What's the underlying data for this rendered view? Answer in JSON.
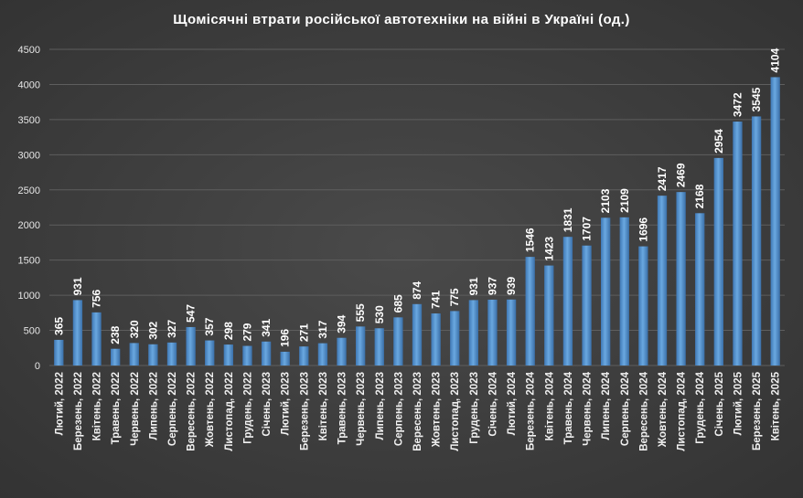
{
  "chart_data": {
    "type": "bar",
    "title": "Щомісячні втрати російської автотехніки на війні в Україні (од.)",
    "xlabel": "",
    "ylabel": "",
    "ylim": [
      0,
      4500
    ],
    "yticks": [
      0,
      500,
      1000,
      1500,
      2000,
      2500,
      3000,
      3500,
      4000,
      4500
    ],
    "grid": true,
    "legend": "none",
    "bar_color": "#5b9bd5",
    "categories": [
      "Лютий, 2022",
      "Березень, 2022",
      "Квітень, 2022",
      "Травень, 2022",
      "Червень, 2022",
      "Липень, 2022",
      "Серпень, 2022",
      "Вересень, 2022",
      "Жовтень, 2022",
      "Листопад, 2022",
      "Грудень, 2022",
      "Січень, 2023",
      "Лютий, 2023",
      "Березень, 2023",
      "Квітень, 2023",
      "Травень, 2023",
      "Червень, 2023",
      "Липень, 2023",
      "Серпень, 2023",
      "Вересень, 2023",
      "Жовтень, 2023",
      "Листопад, 2023",
      "Грудень, 2023",
      "Січень, 2024",
      "Лютий, 2024",
      "Березень, 2024",
      "Квітень, 2024",
      "Травень, 2024",
      "Червень, 2024",
      "Липень, 2024",
      "Серпень, 2024",
      "Вересень, 2024",
      "Жовтень, 2024",
      "Листопад, 2024",
      "Грудень, 2024",
      "Січень, 2025",
      "Лютий, 2025",
      "Березень, 2025",
      "Квітень, 2025"
    ],
    "values": [
      365,
      931,
      756,
      238,
      320,
      302,
      327,
      547,
      357,
      298,
      279,
      341,
      196,
      271,
      317,
      394,
      555,
      530,
      685,
      874,
      741,
      775,
      931,
      937,
      939,
      1546,
      1423,
      1831,
      1707,
      2103,
      2109,
      1696,
      2417,
      2469,
      2168,
      2954,
      3472,
      3545,
      4104
    ]
  }
}
